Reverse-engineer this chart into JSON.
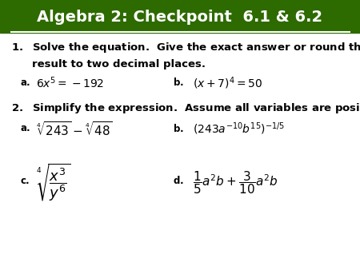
{
  "title": "Algebra 2: Checkpoint  6.1 & 6.2",
  "title_bg": "#2d6a00",
  "title_color": "#ffffff",
  "bg_color": "#ffffff",
  "text_color": "#000000",
  "figsize": [
    4.5,
    3.38
  ],
  "dpi": 100
}
